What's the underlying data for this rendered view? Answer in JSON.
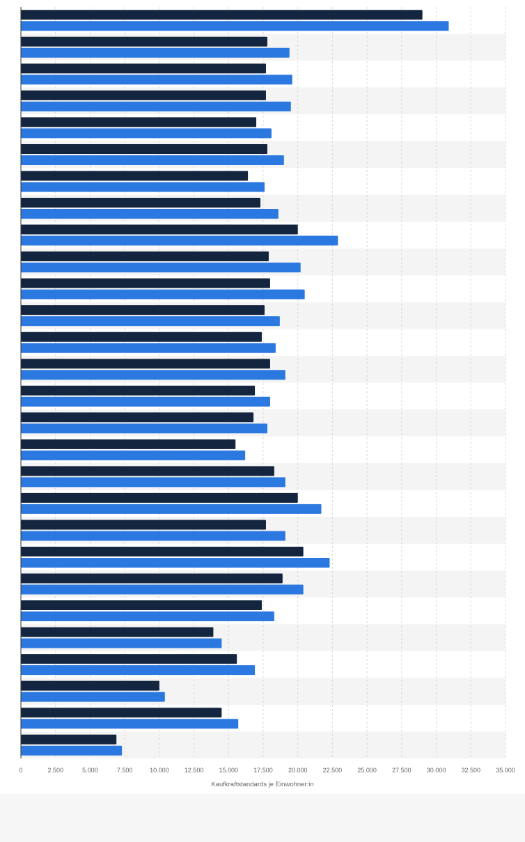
{
  "chart_data": {
    "type": "bar",
    "orientation": "horizontal",
    "categories": [
      "",
      "",
      "",
      "",
      "",
      "",
      "",
      "",
      "",
      "",
      "",
      "",
      "",
      "",
      "",
      "",
      "",
      "",
      "",
      "",
      "",
      "",
      "",
      "",
      "",
      "",
      "",
      ""
    ],
    "series": [
      {
        "color": "#14263f",
        "values": [
          29000,
          17800,
          17700,
          17700,
          17000,
          17800,
          16400,
          17300,
          20000,
          17900,
          18000,
          17600,
          17400,
          18000,
          16900,
          16800,
          15500,
          18300,
          20000,
          17700,
          20400,
          18900,
          17400,
          13900,
          15600,
          10000,
          14500,
          6900
        ]
      },
      {
        "color": "#2b78e0",
        "values": [
          30900,
          19400,
          19600,
          19500,
          18100,
          19000,
          17600,
          18600,
          22900,
          20200,
          20500,
          18700,
          18400,
          19100,
          18000,
          17800,
          16200,
          19100,
          21700,
          19100,
          22300,
          20400,
          18300,
          14500,
          16900,
          10400,
          15700,
          7300
        ]
      }
    ],
    "xlabel": "Kaufkraftstandards je Einwohner:in",
    "xlim": [
      0,
      35000
    ],
    "xticks": [
      "0",
      "2.500",
      "5.000",
      "7.500",
      "10.000",
      "12.500",
      "15.000",
      "17.500",
      "20.000",
      "22.500",
      "25.000",
      "27.500",
      "30.000",
      "32.500",
      "35.000"
    ],
    "grid": true,
    "colors": {
      "background": "#ffffff",
      "band": "#f4f4f4",
      "page": "#f6f6f7"
    }
  }
}
